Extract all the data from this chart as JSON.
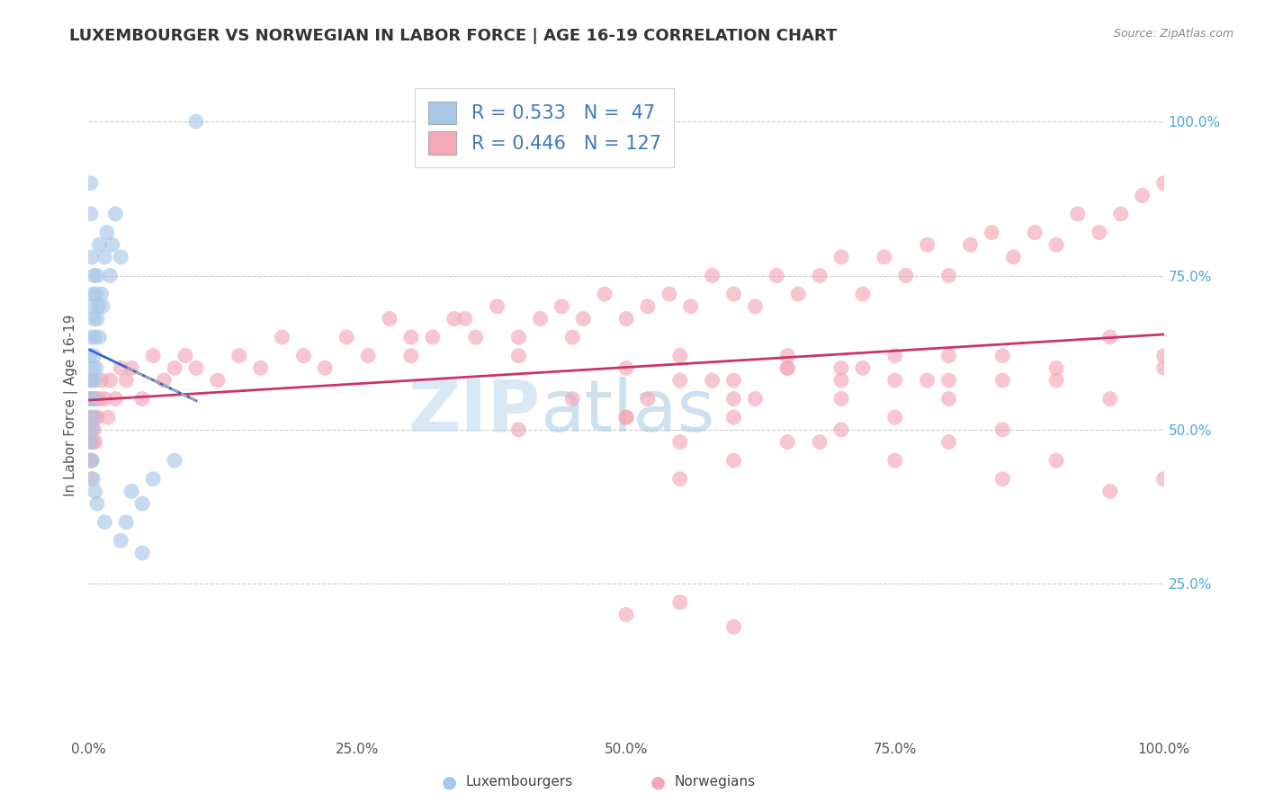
{
  "title": "LUXEMBOURGER VS NORWEGIAN IN LABOR FORCE | AGE 16-19 CORRELATION CHART",
  "source_text": "Source: ZipAtlas.com",
  "ylabel": "In Labor Force | Age 16-19",
  "legend_R": [
    0.533,
    0.446
  ],
  "legend_N": [
    47,
    127
  ],
  "blue_color": "#a8c8e8",
  "pink_color": "#f4a8b8",
  "blue_line_color": "#3366cc",
  "pink_line_color": "#cc3366",
  "blue_scatter_x": [
    0.001,
    0.001,
    0.001,
    0.002,
    0.002,
    0.003,
    0.003,
    0.003,
    0.004,
    0.004,
    0.004,
    0.005,
    0.005,
    0.005,
    0.006,
    0.006,
    0.007,
    0.007,
    0.008,
    0.008,
    0.009,
    0.01,
    0.01,
    0.012,
    0.013,
    0.015,
    0.017,
    0.02,
    0.022,
    0.025,
    0.03,
    0.035,
    0.04,
    0.05,
    0.06,
    0.08,
    0.1,
    0.002,
    0.002,
    0.003,
    0.003,
    0.004,
    0.006,
    0.008,
    0.015,
    0.03,
    0.05
  ],
  "blue_scatter_y": [
    0.55,
    0.48,
    0.62,
    0.7,
    0.58,
    0.65,
    0.52,
    0.78,
    0.6,
    0.72,
    0.55,
    0.68,
    0.62,
    0.75,
    0.65,
    0.58,
    0.72,
    0.6,
    0.68,
    0.75,
    0.7,
    0.65,
    0.8,
    0.72,
    0.7,
    0.78,
    0.82,
    0.75,
    0.8,
    0.85,
    0.78,
    0.35,
    0.4,
    0.38,
    0.42,
    0.45,
    1.0,
    0.9,
    0.85,
    0.5,
    0.45,
    0.42,
    0.4,
    0.38,
    0.35,
    0.32,
    0.3
  ],
  "pink_scatter_x": [
    0.001,
    0.001,
    0.002,
    0.002,
    0.002,
    0.003,
    0.003,
    0.003,
    0.004,
    0.004,
    0.005,
    0.005,
    0.006,
    0.006,
    0.007,
    0.008,
    0.01,
    0.012,
    0.015,
    0.018,
    0.02,
    0.025,
    0.03,
    0.035,
    0.04,
    0.05,
    0.06,
    0.07,
    0.08,
    0.09,
    0.1,
    0.12,
    0.14,
    0.16,
    0.18,
    0.2,
    0.22,
    0.24,
    0.26,
    0.28,
    0.3,
    0.32,
    0.34,
    0.36,
    0.38,
    0.4,
    0.42,
    0.44,
    0.46,
    0.48,
    0.5,
    0.52,
    0.54,
    0.56,
    0.58,
    0.6,
    0.62,
    0.64,
    0.66,
    0.68,
    0.7,
    0.72,
    0.74,
    0.76,
    0.78,
    0.8,
    0.82,
    0.84,
    0.86,
    0.88,
    0.9,
    0.92,
    0.94,
    0.96,
    0.98,
    1.0,
    0.5,
    0.52,
    0.55,
    0.58,
    0.6,
    0.62,
    0.65,
    0.68,
    0.7,
    0.72,
    0.75,
    0.78,
    0.8,
    0.85,
    0.9,
    0.95,
    1.0,
    0.55,
    0.6,
    0.65,
    0.7,
    0.75,
    0.8,
    0.85,
    0.9,
    0.95,
    1.0,
    0.3,
    0.35,
    0.4,
    0.45,
    0.5,
    0.55,
    0.6,
    0.65,
    0.7,
    0.75,
    0.8,
    0.85,
    0.4,
    0.45,
    0.5,
    0.55,
    0.6,
    0.65,
    0.7,
    0.75,
    0.8,
    0.85,
    0.9,
    0.95,
    1.0,
    0.5,
    0.55,
    0.6
  ],
  "pink_scatter_y": [
    0.52,
    0.45,
    0.55,
    0.48,
    0.42,
    0.5,
    0.58,
    0.45,
    0.52,
    0.48,
    0.55,
    0.5,
    0.52,
    0.48,
    0.55,
    0.52,
    0.55,
    0.58,
    0.55,
    0.52,
    0.58,
    0.55,
    0.6,
    0.58,
    0.6,
    0.55,
    0.62,
    0.58,
    0.6,
    0.62,
    0.6,
    0.58,
    0.62,
    0.6,
    0.65,
    0.62,
    0.6,
    0.65,
    0.62,
    0.68,
    0.62,
    0.65,
    0.68,
    0.65,
    0.7,
    0.65,
    0.68,
    0.7,
    0.68,
    0.72,
    0.68,
    0.7,
    0.72,
    0.7,
    0.75,
    0.72,
    0.7,
    0.75,
    0.72,
    0.75,
    0.78,
    0.72,
    0.78,
    0.75,
    0.8,
    0.75,
    0.8,
    0.82,
    0.78,
    0.82,
    0.8,
    0.85,
    0.82,
    0.85,
    0.88,
    0.9,
    0.52,
    0.55,
    0.48,
    0.58,
    0.52,
    0.55,
    0.6,
    0.48,
    0.55,
    0.6,
    0.52,
    0.58,
    0.55,
    0.5,
    0.58,
    0.55,
    0.6,
    0.42,
    0.45,
    0.48,
    0.5,
    0.45,
    0.48,
    0.42,
    0.45,
    0.4,
    0.42,
    0.65,
    0.68,
    0.62,
    0.65,
    0.6,
    0.62,
    0.58,
    0.62,
    0.6,
    0.58,
    0.62,
    0.58,
    0.5,
    0.55,
    0.52,
    0.58,
    0.55,
    0.6,
    0.58,
    0.62,
    0.58,
    0.62,
    0.6,
    0.65,
    0.62,
    0.2,
    0.22,
    0.18
  ],
  "xlim": [
    0.0,
    1.0
  ],
  "ylim": [
    0.0,
    1.08
  ],
  "x_ticks": [
    0.0,
    0.25,
    0.5,
    0.75,
    1.0
  ],
  "x_tick_labels": [
    "0.0%",
    "25.0%",
    "50.0%",
    "75.0%",
    "100.0%"
  ],
  "y_ticks_right": [
    0.25,
    0.5,
    0.75,
    1.0
  ],
  "y_tick_labels_right": [
    "25.0%",
    "50.0%",
    "75.0%",
    "100.0%"
  ],
  "background_color": "#ffffff",
  "grid_color": "#cccccc",
  "tick_color": "#4da6e0",
  "title_fontsize": 13,
  "tick_fontsize": 11,
  "legend_fontsize": 15
}
